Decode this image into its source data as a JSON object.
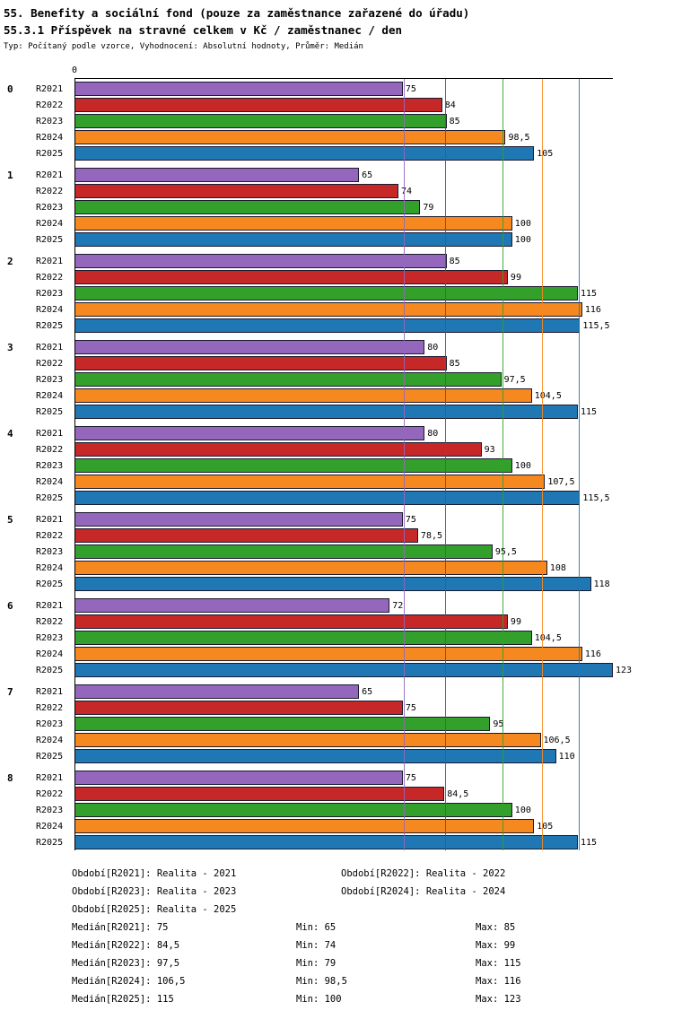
{
  "title": "55. Benefity a sociální fond (pouze za zaměstnance zařazené do úřadu)",
  "subtitle": "55.3.1 Příspěvek na stravné celkem v Kč / zaměstnanec / den",
  "meta": "Typ: Počítaný podle vzorce, Vyhodnocení: Absolutní hodnoty, Průměr: Medián",
  "axis": {
    "zero_label": "0",
    "xmax": 123
  },
  "chart_data": {
    "type": "bar",
    "orientation": "horizontal",
    "xlim": [
      0,
      123
    ],
    "grid": "median-lines-only",
    "series_labels": [
      "R2021",
      "R2022",
      "R2023",
      "R2024",
      "R2025"
    ],
    "series_colors": [
      "#9467BD",
      "#C62828",
      "#33A02C",
      "#F5891F",
      "#1F77B4"
    ],
    "groups": [
      {
        "label": "0",
        "values": [
          "75",
          "84",
          "85",
          "98,5",
          "105"
        ]
      },
      {
        "label": "1",
        "values": [
          "65",
          "74",
          "79",
          "100",
          "100"
        ]
      },
      {
        "label": "2",
        "values": [
          "85",
          "99",
          "115",
          "116",
          "115,5"
        ]
      },
      {
        "label": "3",
        "values": [
          "80",
          "85",
          "97,5",
          "104,5",
          "115"
        ]
      },
      {
        "label": "4",
        "values": [
          "80",
          "93",
          "100",
          "107,5",
          "115,5"
        ]
      },
      {
        "label": "5",
        "values": [
          "75",
          "78,5",
          "95,5",
          "108",
          "118"
        ]
      },
      {
        "label": "6",
        "values": [
          "72",
          "99",
          "104,5",
          "116",
          "123"
        ]
      },
      {
        "label": "7",
        "values": [
          "65",
          "75",
          "95",
          "106,5",
          "110"
        ]
      },
      {
        "label": "8",
        "values": [
          "75",
          "84,5",
          "100",
          "105",
          "115"
        ]
      }
    ],
    "median_lines": [
      {
        "series": "R2021",
        "value": "75",
        "color": "#9467BD"
      },
      {
        "series": "R2022",
        "value": "84,5",
        "color": "#C62828"
      },
      {
        "series": "R2023",
        "value": "97,5",
        "color": "#33A02C"
      },
      {
        "series": "R2024",
        "value": "106,5",
        "color": "#F5891F"
      },
      {
        "series": "R2025",
        "value": "115",
        "color": "#1F77B4"
      }
    ]
  },
  "legend": {
    "period_rows": [
      [
        "Období[R2021]: Realita - 2021",
        "Období[R2022]: Realita - 2022"
      ],
      [
        "Období[R2023]: Realita - 2023",
        "Období[R2024]: Realita - 2024"
      ],
      [
        "Období[R2025]: Realita - 2025",
        ""
      ]
    ],
    "stats": [
      {
        "median": "Medián[R2021]: 75",
        "min": "Min: 65",
        "max": "Max: 85"
      },
      {
        "median": "Medián[R2022]: 84,5",
        "min": "Min: 74",
        "max": "Max: 99"
      },
      {
        "median": "Medián[R2023]: 97,5",
        "min": "Min: 79",
        "max": "Max: 115"
      },
      {
        "median": "Medián[R2024]: 106,5",
        "min": "Min: 98,5",
        "max": "Max: 116"
      },
      {
        "median": "Medián[R2025]: 115",
        "min": "Min: 100",
        "max": "Max: 123"
      }
    ]
  }
}
